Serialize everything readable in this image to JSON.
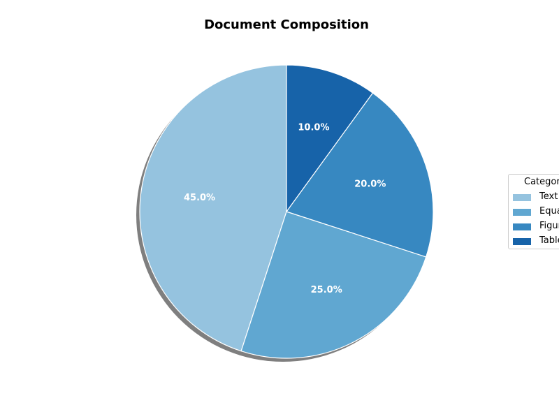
{
  "chart_data": {
    "type": "pie",
    "title": "Document Composition",
    "categories": [
      "Text",
      "Equations",
      "Figures",
      "Tables"
    ],
    "values": [
      45.0,
      25.0,
      20.0,
      10.0
    ],
    "labels": [
      "45.0%",
      "25.0%",
      "20.0%",
      "10.0%"
    ],
    "colors": [
      "#95c3df",
      "#60a7d1",
      "#3788c1",
      "#1763a9"
    ],
    "legend": {
      "title": "Categories",
      "placement": "right"
    },
    "start_angle": "top",
    "direction": "counterclockwise",
    "shadow": true
  }
}
